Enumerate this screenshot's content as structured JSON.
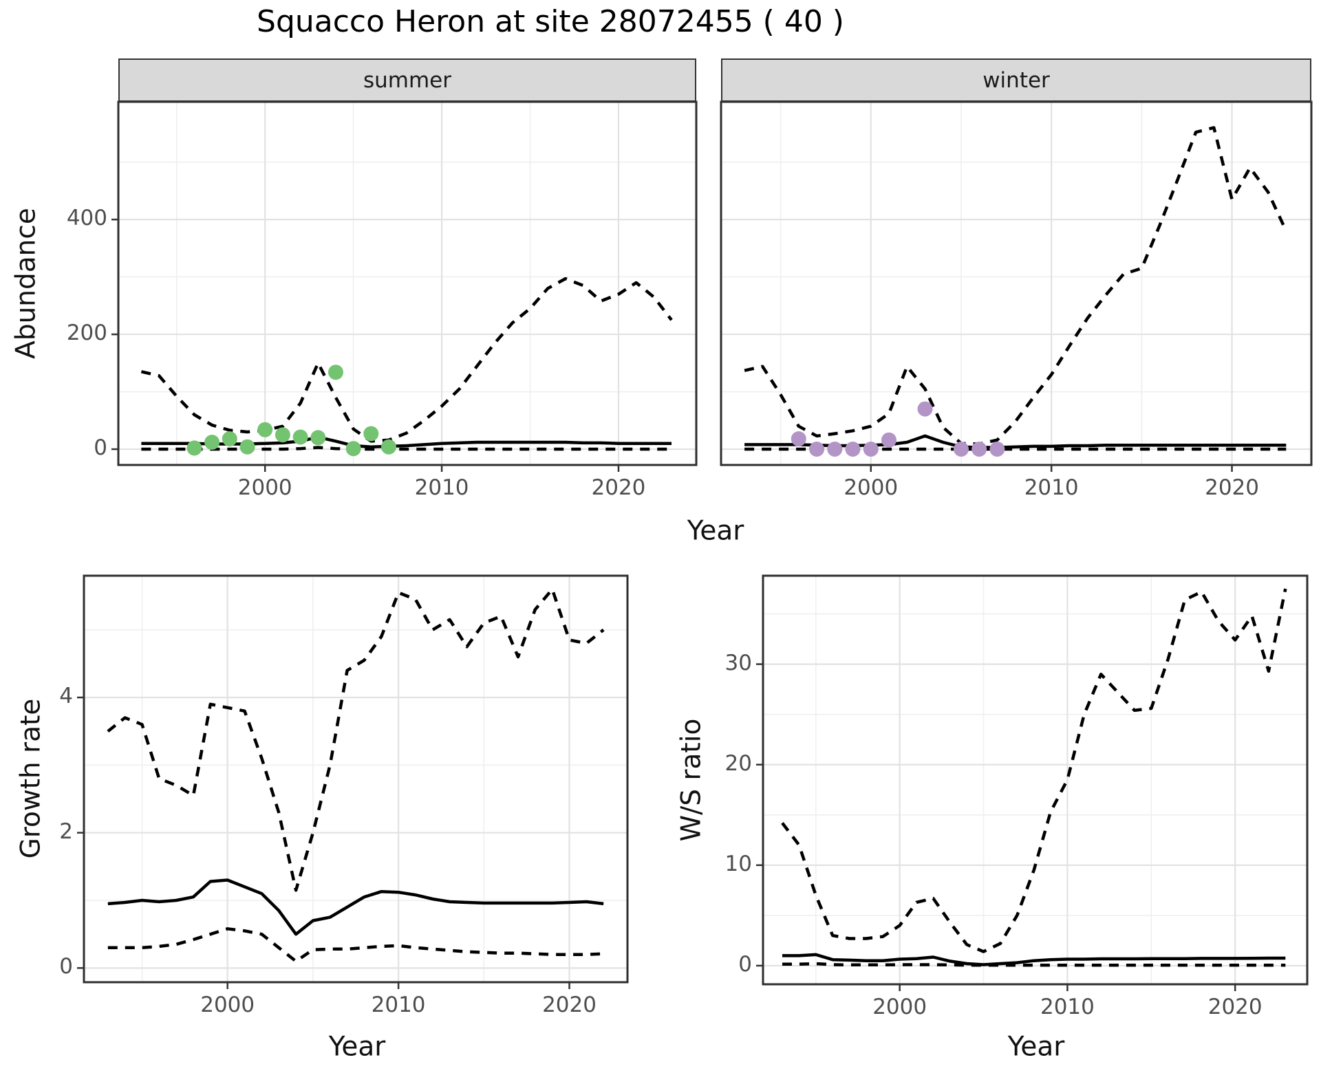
{
  "title": "Squacco Heron at site 28072455 ( 40 )",
  "top_xlabel": "Year",
  "styles": {
    "point_green": "#74c371",
    "point_purple": "#b394c6",
    "line_color": "#000000",
    "strip_fill": "#d9d9d9",
    "grid_major": "#e2e2e2",
    "grid_minor": "#efefef",
    "panel_border": "#2e2e2e",
    "tick_color": "#333333",
    "tick_label_color": "#4d4d4d"
  },
  "chart_data": [
    {
      "id": "abundance_summer",
      "type": "line",
      "facet_label": "summer",
      "ylabel": "Abundance",
      "xlabel": "Year",
      "xlim": [
        1991.7,
        2024.4
      ],
      "ylim": [
        -27.5,
        605
      ],
      "xticks": [
        2000,
        2010,
        2020
      ],
      "xtick_labels": [
        "2000",
        "2010",
        "2020"
      ],
      "yticks": [
        0,
        200,
        400
      ],
      "ytick_labels": [
        "0",
        "200",
        "400"
      ],
      "grid": true,
      "legend_position": "none",
      "years": [
        1993,
        1994,
        1995,
        1996,
        1997,
        1998,
        1999,
        2000,
        2001,
        2002,
        2003,
        2004,
        2005,
        2006,
        2007,
        2008,
        2009,
        2010,
        2011,
        2012,
        2013,
        2014,
        2015,
        2016,
        2017,
        2018,
        2019,
        2020,
        2021,
        2022,
        2023
      ],
      "series": [
        {
          "name": "median_fit",
          "style": "solid",
          "values": [
            10,
            10,
            10,
            10,
            9,
            9,
            9,
            10,
            11,
            14,
            21,
            14,
            6,
            4,
            5,
            6,
            8,
            10,
            11,
            12,
            12,
            12,
            12,
            12,
            12,
            11,
            11,
            10,
            10,
            10,
            10
          ]
        },
        {
          "name": "upper_ci",
          "style": "dashed",
          "values": [
            135,
            128,
            92,
            60,
            42,
            33,
            30,
            33,
            40,
            80,
            150,
            90,
            35,
            14,
            16,
            28,
            50,
            75,
            105,
            145,
            185,
            220,
            245,
            280,
            297,
            285,
            258,
            270,
            290,
            265,
            225
          ]
        },
        {
          "name": "lower_ci",
          "style": "dashed",
          "values": [
            0,
            0,
            0,
            0,
            0,
            0,
            0,
            0,
            0,
            1,
            3,
            1,
            0,
            0,
            0,
            0,
            0,
            0,
            0,
            0,
            0,
            0,
            0,
            0,
            0,
            0,
            0,
            0,
            0,
            0,
            0
          ]
        },
        {
          "name": "observed_counts",
          "style": "points",
          "color_key": "point_green",
          "x": [
            1996,
            1997,
            1998,
            1999,
            2000,
            2001,
            2002,
            2003,
            2004,
            2005,
            2006,
            2007
          ],
          "values": [
            2,
            12,
            18,
            4,
            34,
            25,
            21,
            20,
            134,
            1,
            27,
            4
          ]
        }
      ]
    },
    {
      "id": "abundance_winter",
      "type": "line",
      "facet_label": "winter",
      "ylabel": "Abundance",
      "xlabel": "Year",
      "xlim": [
        1991.7,
        2024.4
      ],
      "ylim": [
        -27.5,
        605
      ],
      "xticks": [
        2000,
        2010,
        2020
      ],
      "xtick_labels": [
        "2000",
        "2010",
        "2020"
      ],
      "yticks": [
        0,
        200,
        400
      ],
      "ytick_labels": [
        "0",
        "200",
        "400"
      ],
      "grid": true,
      "legend_position": "none",
      "years": [
        1993,
        1994,
        1995,
        1996,
        1997,
        1998,
        1999,
        2000,
        2001,
        2002,
        2003,
        2004,
        2005,
        2006,
        2007,
        2008,
        2009,
        2010,
        2011,
        2012,
        2013,
        2014,
        2015,
        2016,
        2017,
        2018,
        2019,
        2020,
        2021,
        2022,
        2023
      ],
      "series": [
        {
          "name": "median_fit",
          "style": "solid",
          "values": [
            8,
            8,
            8,
            8,
            7,
            6,
            6,
            7,
            8,
            12,
            23,
            12,
            4,
            3,
            3,
            4,
            5,
            5,
            6,
            6,
            7,
            7,
            7,
            7,
            7,
            7,
            7,
            7,
            7,
            7,
            7
          ]
        },
        {
          "name": "upper_ci",
          "style": "dashed",
          "values": [
            137,
            144,
            95,
            40,
            23,
            27,
            32,
            40,
            62,
            144,
            105,
            38,
            10,
            9,
            16,
            48,
            90,
            130,
            180,
            228,
            268,
            305,
            315,
            390,
            470,
            552,
            560,
            435,
            490,
            448,
            380
          ]
        },
        {
          "name": "lower_ci",
          "style": "dashed",
          "values": [
            0,
            0,
            0,
            0,
            0,
            0,
            0,
            0,
            0,
            0,
            0,
            0,
            0,
            0,
            0,
            0,
            0,
            0,
            0,
            0,
            0,
            0,
            0,
            0,
            0,
            0,
            0,
            0,
            0,
            0,
            0
          ]
        },
        {
          "name": "observed_counts",
          "style": "points",
          "color_key": "point_purple",
          "x": [
            1996,
            1997,
            1998,
            1999,
            2000,
            2001,
            2003,
            2005,
            2006,
            2007
          ],
          "values": [
            18,
            0,
            0,
            0,
            0,
            16,
            70,
            0,
            0,
            0
          ]
        }
      ]
    },
    {
      "id": "growth_rate",
      "type": "line",
      "facet_label": "",
      "ylabel": "Growth rate",
      "xlabel": "Year",
      "xlim": [
        1991.6,
        2023.4
      ],
      "ylim": [
        -0.21,
        5.8
      ],
      "xticks": [
        2000,
        2010,
        2020
      ],
      "xtick_labels": [
        "2000",
        "2010",
        "2020"
      ],
      "yticks": [
        0,
        2,
        4
      ],
      "ytick_labels": [
        "0",
        "2",
        "4"
      ],
      "grid": true,
      "legend_position": "none",
      "years": [
        1993,
        1994,
        1995,
        1996,
        1997,
        1998,
        1999,
        2000,
        2001,
        2002,
        2003,
        2004,
        2005,
        2006,
        2007,
        2008,
        2009,
        2010,
        2011,
        2012,
        2013,
        2014,
        2015,
        2016,
        2017,
        2018,
        2019,
        2020,
        2021,
        2022
      ],
      "series": [
        {
          "name": "median_fit",
          "style": "solid",
          "values": [
            0.95,
            0.97,
            1.0,
            0.98,
            1.0,
            1.05,
            1.28,
            1.3,
            1.2,
            1.1,
            0.85,
            0.5,
            0.7,
            0.75,
            0.9,
            1.05,
            1.13,
            1.12,
            1.08,
            1.02,
            0.98,
            0.97,
            0.96,
            0.96,
            0.96,
            0.96,
            0.96,
            0.97,
            0.98,
            0.95
          ]
        },
        {
          "name": "upper_ci",
          "style": "dashed",
          "values": [
            3.5,
            3.7,
            3.6,
            2.8,
            2.7,
            2.55,
            3.9,
            3.85,
            3.8,
            3.1,
            2.3,
            1.15,
            2.0,
            3.0,
            4.4,
            4.55,
            4.9,
            5.55,
            5.45,
            5.0,
            5.15,
            4.75,
            5.1,
            5.2,
            4.6,
            5.3,
            5.6,
            4.85,
            4.8,
            5.0
          ]
        },
        {
          "name": "lower_ci",
          "style": "dashed",
          "values": [
            0.3,
            0.3,
            0.3,
            0.32,
            0.35,
            0.42,
            0.5,
            0.58,
            0.55,
            0.5,
            0.3,
            0.1,
            0.27,
            0.28,
            0.28,
            0.3,
            0.32,
            0.33,
            0.3,
            0.28,
            0.26,
            0.24,
            0.23,
            0.22,
            0.22,
            0.21,
            0.2,
            0.2,
            0.2,
            0.21
          ]
        }
      ]
    },
    {
      "id": "ws_ratio",
      "type": "line",
      "facet_label": "",
      "ylabel": "W/S ratio",
      "xlabel": "Year",
      "xlim": [
        1991.85,
        2024.3
      ],
      "ylim": [
        -1.85,
        38.8
      ],
      "xticks": [
        2000,
        2010,
        2020
      ],
      "xtick_labels": [
        "2000",
        "2010",
        "2020"
      ],
      "yticks": [
        0,
        10,
        20,
        30
      ],
      "ytick_labels": [
        "0",
        "10",
        "20",
        "30"
      ],
      "grid": true,
      "legend_position": "none",
      "years": [
        1993,
        1994,
        1995,
        1996,
        1997,
        1998,
        1999,
        2000,
        2001,
        2002,
        2003,
        2004,
        2005,
        2006,
        2007,
        2008,
        2009,
        2010,
        2011,
        2012,
        2013,
        2014,
        2015,
        2016,
        2017,
        2018,
        2019,
        2020,
        2021,
        2022,
        2023
      ],
      "series": [
        {
          "name": "median_fit",
          "style": "solid",
          "values": [
            1.0,
            1.0,
            1.1,
            0.6,
            0.55,
            0.5,
            0.5,
            0.65,
            0.7,
            0.85,
            0.45,
            0.2,
            0.1,
            0.2,
            0.3,
            0.5,
            0.6,
            0.65,
            0.65,
            0.68,
            0.68,
            0.68,
            0.7,
            0.7,
            0.7,
            0.72,
            0.72,
            0.72,
            0.73,
            0.75,
            0.75
          ]
        },
        {
          "name": "upper_ci",
          "style": "dashed",
          "values": [
            14.2,
            12.0,
            7.0,
            3.0,
            2.7,
            2.7,
            2.9,
            4.0,
            6.3,
            6.7,
            4.3,
            2.1,
            1.4,
            2.2,
            5.0,
            9.5,
            15.3,
            18.5,
            25.0,
            29.0,
            27.2,
            25.4,
            25.6,
            30.5,
            36.4,
            37.2,
            34.3,
            32.4,
            34.8,
            29.3,
            37.5
          ]
        },
        {
          "name": "lower_ci",
          "style": "dashed",
          "values": [
            0.15,
            0.15,
            0.2,
            0.1,
            0.08,
            0.08,
            0.08,
            0.1,
            0.1,
            0.1,
            0.08,
            0.05,
            0.05,
            0.05,
            0.05,
            0.05,
            0.05,
            0.05,
            0.05,
            0.05,
            0.05,
            0.05,
            0.05,
            0.05,
            0.05,
            0.05,
            0.05,
            0.05,
            0.05,
            0.05,
            0.05
          ]
        }
      ]
    }
  ]
}
